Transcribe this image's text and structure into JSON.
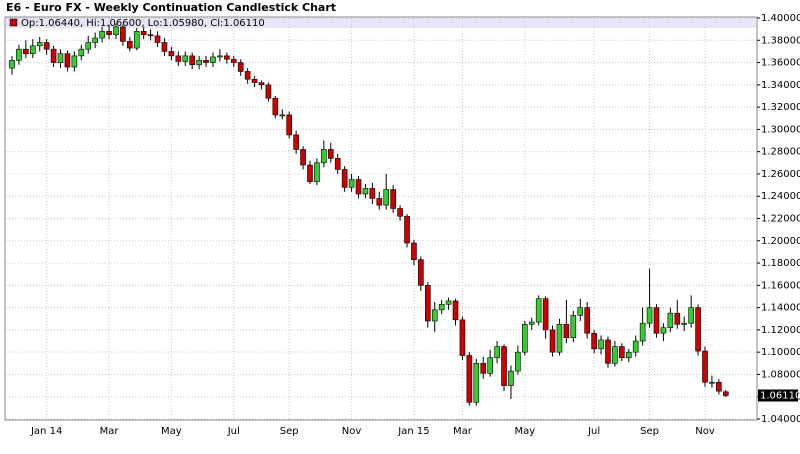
{
  "chart_data": {
    "type": "candlestick",
    "title": "E6 - Euro FX - Weekly Continuation Candlestick Chart",
    "info_label": "Op:1.06440, Hi:1.06600, Lo:1.05980, Cl:1.06110",
    "last_price": {
      "value": 1.0611,
      "label": "1.06110"
    },
    "up_color": "#33cc33",
    "down_color": "#cc0000",
    "grid": true,
    "ylim": [
      1.04,
      1.4
    ],
    "yticks": [
      {
        "value": 1.04,
        "label": "1.04000"
      },
      {
        "value": 1.06,
        "label": "1.06000"
      },
      {
        "value": 1.08,
        "label": "1.08000"
      },
      {
        "value": 1.1,
        "label": "1.10000"
      },
      {
        "value": 1.12,
        "label": "1.12000"
      },
      {
        "value": 1.14,
        "label": "1.14000"
      },
      {
        "value": 1.16,
        "label": "1.16000"
      },
      {
        "value": 1.18,
        "label": "1.18000"
      },
      {
        "value": 1.2,
        "label": "1.20000"
      },
      {
        "value": 1.22,
        "label": "1.22000"
      },
      {
        "value": 1.24,
        "label": "1.24000"
      },
      {
        "value": 1.26,
        "label": "1.26000"
      },
      {
        "value": 1.28,
        "label": "1.28000"
      },
      {
        "value": 1.3,
        "label": "1.30000"
      },
      {
        "value": 1.32,
        "label": "1.32000"
      },
      {
        "value": 1.34,
        "label": "1.34000"
      },
      {
        "value": 1.36,
        "label": "1.36000"
      },
      {
        "value": 1.38,
        "label": "1.38000"
      },
      {
        "value": 1.4,
        "label": "1.40000"
      }
    ],
    "categories": [
      null,
      null,
      null,
      null,
      null,
      "Jan 14",
      null,
      null,
      null,
      null,
      null,
      null,
      null,
      null,
      "Mar",
      null,
      null,
      null,
      null,
      null,
      null,
      null,
      null,
      "May",
      null,
      null,
      null,
      null,
      null,
      null,
      null,
      null,
      "Jul",
      null,
      null,
      null,
      null,
      null,
      null,
      null,
      "Sep",
      null,
      null,
      null,
      null,
      null,
      null,
      null,
      null,
      "Nov",
      null,
      null,
      null,
      null,
      null,
      null,
      null,
      null,
      "Jan 15",
      null,
      null,
      null,
      null,
      null,
      null,
      "Mar",
      null,
      null,
      null,
      null,
      null,
      null,
      null,
      null,
      "May",
      null,
      null,
      null,
      null,
      null,
      null,
      null,
      null,
      null,
      "Jul",
      null,
      null,
      null,
      null,
      null,
      null,
      null,
      "Sep",
      null,
      null,
      null,
      null,
      null,
      null,
      null,
      "Nov",
      null,
      null,
      null
    ],
    "open": [
      1.355,
      1.362,
      1.372,
      1.368,
      1.375,
      1.378,
      1.372,
      1.36,
      1.368,
      1.356,
      1.366,
      1.372,
      1.378,
      1.382,
      1.388,
      1.385,
      1.392,
      1.379,
      1.373,
      1.388,
      1.385,
      1.384,
      1.378,
      1.37,
      1.366,
      1.361,
      1.366,
      1.358,
      1.362,
      1.36,
      1.365,
      1.366,
      1.363,
      1.36,
      1.352,
      1.345,
      1.342,
      1.34,
      1.328,
      1.313,
      1.313,
      1.295,
      1.282,
      1.268,
      1.253,
      1.27,
      1.282,
      1.274,
      1.264,
      1.248,
      1.255,
      1.242,
      1.247,
      1.238,
      1.232,
      1.246,
      1.229,
      1.222,
      1.198,
      1.183,
      1.16,
      1.128,
      1.138,
      1.143,
      1.146,
      1.129,
      1.097,
      1.055,
      1.09,
      1.081,
      1.095,
      1.105,
      1.07,
      1.083,
      1.1,
      1.125,
      1.127,
      1.148,
      1.12,
      1.1,
      1.125,
      1.113,
      1.133,
      1.14,
      1.117,
      1.103,
      1.111,
      1.09,
      1.105,
      1.095,
      1.1,
      1.11,
      1.126,
      1.14,
      1.117,
      1.122,
      1.135,
      1.125,
      1.126,
      1.14,
      1.101,
      1.073,
      1.073,
      1.0644
    ],
    "high": [
      1.366,
      1.376,
      1.38,
      1.381,
      1.383,
      1.381,
      1.375,
      1.372,
      1.371,
      1.37,
      1.376,
      1.384,
      1.387,
      1.392,
      1.394,
      1.395,
      1.394,
      1.383,
      1.391,
      1.392,
      1.39,
      1.388,
      1.382,
      1.374,
      1.37,
      1.37,
      1.369,
      1.366,
      1.366,
      1.369,
      1.372,
      1.369,
      1.366,
      1.363,
      1.355,
      1.348,
      1.344,
      1.342,
      1.33,
      1.318,
      1.316,
      1.299,
      1.285,
      1.272,
      1.274,
      1.29,
      1.288,
      1.278,
      1.267,
      1.26,
      1.258,
      1.251,
      1.252,
      1.244,
      1.26,
      1.25,
      1.232,
      1.224,
      1.201,
      1.186,
      1.163,
      1.145,
      1.147,
      1.149,
      1.148,
      1.132,
      1.1,
      1.094,
      1.096,
      1.102,
      1.11,
      1.107,
      1.088,
      1.106,
      1.128,
      1.131,
      1.151,
      1.15,
      1.124,
      1.13,
      1.147,
      1.137,
      1.148,
      1.145,
      1.12,
      1.115,
      1.114,
      1.11,
      1.108,
      1.103,
      1.115,
      1.14,
      1.175,
      1.143,
      1.126,
      1.14,
      1.147,
      1.132,
      1.151,
      1.143,
      1.105,
      1.079,
      1.076,
      1.066
    ],
    "low": [
      1.349,
      1.358,
      1.364,
      1.364,
      1.37,
      1.367,
      1.356,
      1.355,
      1.352,
      1.352,
      1.362,
      1.368,
      1.373,
      1.378,
      1.381,
      1.381,
      1.375,
      1.37,
      1.371,
      1.381,
      1.38,
      1.374,
      1.366,
      1.362,
      1.357,
      1.357,
      1.354,
      1.354,
      1.356,
      1.356,
      1.361,
      1.359,
      1.356,
      1.348,
      1.341,
      1.338,
      1.336,
      1.325,
      1.31,
      1.309,
      1.292,
      1.278,
      1.264,
      1.251,
      1.25,
      1.266,
      1.27,
      1.26,
      1.244,
      1.244,
      1.238,
      1.238,
      1.233,
      1.228,
      1.228,
      1.225,
      1.218,
      1.194,
      1.178,
      1.155,
      1.122,
      1.118,
      1.134,
      1.138,
      1.124,
      1.093,
      1.052,
      1.052,
      1.076,
      1.078,
      1.09,
      1.065,
      1.058,
      1.08,
      1.097,
      1.12,
      1.124,
      1.112,
      1.096,
      1.097,
      1.108,
      1.109,
      1.128,
      1.112,
      1.099,
      1.098,
      1.086,
      1.087,
      1.092,
      1.091,
      1.096,
      1.106,
      1.122,
      1.113,
      1.11,
      1.118,
      1.121,
      1.119,
      1.122,
      1.097,
      1.069,
      1.068,
      1.062,
      1.0598
    ],
    "close": [
      1.362,
      1.372,
      1.368,
      1.375,
      1.378,
      1.372,
      1.36,
      1.368,
      1.356,
      1.366,
      1.372,
      1.378,
      1.382,
      1.388,
      1.385,
      1.392,
      1.379,
      1.373,
      1.388,
      1.385,
      1.384,
      1.378,
      1.37,
      1.366,
      1.361,
      1.366,
      1.358,
      1.362,
      1.36,
      1.365,
      1.366,
      1.363,
      1.36,
      1.352,
      1.345,
      1.342,
      1.34,
      1.328,
      1.313,
      1.313,
      1.295,
      1.282,
      1.268,
      1.253,
      1.27,
      1.282,
      1.274,
      1.264,
      1.248,
      1.255,
      1.242,
      1.247,
      1.238,
      1.232,
      1.246,
      1.229,
      1.222,
      1.198,
      1.183,
      1.16,
      1.128,
      1.138,
      1.143,
      1.146,
      1.129,
      1.097,
      1.055,
      1.09,
      1.081,
      1.095,
      1.105,
      1.07,
      1.083,
      1.1,
      1.125,
      1.127,
      1.148,
      1.12,
      1.1,
      1.125,
      1.113,
      1.133,
      1.14,
      1.117,
      1.103,
      1.111,
      1.09,
      1.105,
      1.095,
      1.1,
      1.11,
      1.126,
      1.14,
      1.117,
      1.122,
      1.135,
      1.125,
      1.126,
      1.14,
      1.101,
      1.073,
      1.073,
      1.065,
      1.0611
    ]
  }
}
